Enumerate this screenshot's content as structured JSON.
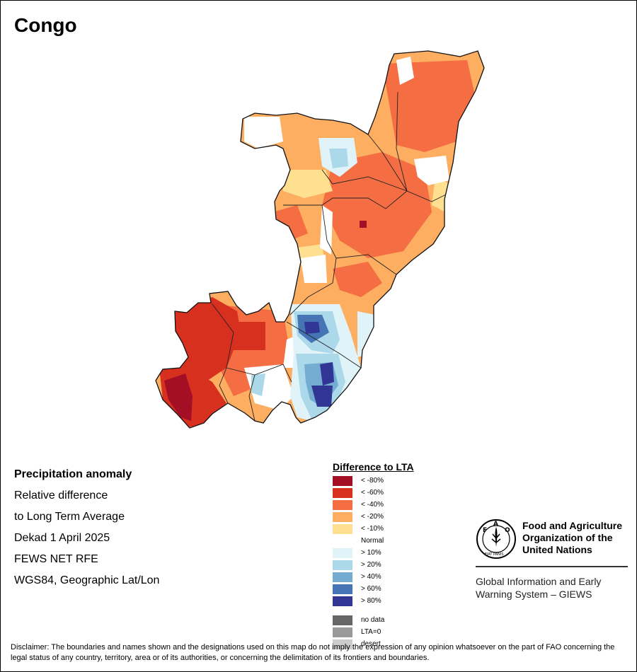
{
  "title": "Congo",
  "info": {
    "heading": "Precipitation anomaly",
    "line1": "Relative difference",
    "line2": "to Long Term Average",
    "line3": "Dekad 1 April 2025",
    "line4": "FEWS NET RFE",
    "line5": "WGS84, Geographic Lat/Lon"
  },
  "legend": {
    "title": "Difference to LTA",
    "items": [
      {
        "label": "< -80%",
        "color": "#a50f26"
      },
      {
        "label": "< -60%",
        "color": "#d7301f"
      },
      {
        "label": "< -40%",
        "color": "#f46d43"
      },
      {
        "label": "< -20%",
        "color": "#fdae61"
      },
      {
        "label": "< -10%",
        "color": "#fee090"
      },
      {
        "label": "Normal",
        "color": "#ffffff"
      },
      {
        "label": "> 10%",
        "color": "#e0f3f8"
      },
      {
        "label": "> 20%",
        "color": "#abd9e9"
      },
      {
        "label": "> 40%",
        "color": "#74add1"
      },
      {
        "label": "> 60%",
        "color": "#4575b4"
      },
      {
        "label": "> 80%",
        "color": "#313695"
      }
    ],
    "extra": [
      {
        "label": "no data",
        "color": "#666666"
      },
      {
        "label": "LTA=0",
        "color": "#999999"
      },
      {
        "label": "desert",
        "color": "#cccccc"
      }
    ]
  },
  "logo": {
    "name_line1": "Food and Agriculture",
    "name_line2": "Organization of the",
    "name_line3": "United Nations",
    "giews_line1": "Global Information and Early",
    "giews_line2": "Warning System – GIEWS",
    "emblem_letters": "FAO",
    "emblem_motto": "FIAT PANIS"
  },
  "disclaimer": "Disclaimer: The boundaries and names shown and the designations used on this map do not imply the expression of any opinion whatsoever on the part of FAO concerning the legal status of any country, territory, area or of its authorities, or concerning the delimitation of its frontiers and boundaries."
}
